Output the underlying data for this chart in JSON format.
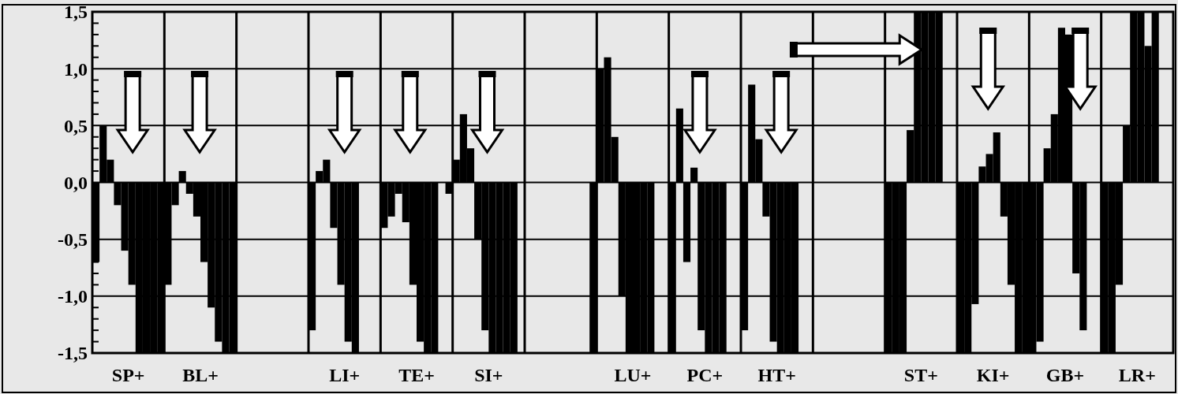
{
  "chart_data": {
    "type": "bar",
    "categories": [
      "SP+",
      "BL+",
      null,
      "LI+",
      "TE+",
      "SI+",
      null,
      "LU+",
      "PC+",
      "HT+",
      null,
      "ST+",
      "KI+",
      "GB+",
      "LR+"
    ],
    "series": [
      {
        "color": "#000000",
        "values": [
          -0.7,
          -0.9,
          null,
          -1.3,
          -0.4,
          0.2,
          null,
          1.0,
          -1.5,
          -1.3,
          null,
          -1.5,
          -1.5,
          -1.5,
          -1.5
        ]
      },
      {
        "color": "#000000",
        "values": [
          0.5,
          -0.2,
          null,
          0.1,
          -0.3,
          0.6,
          null,
          1.1,
          0.65,
          0.86,
          null,
          -1.5,
          -1.5,
          -1.4,
          -1.5
        ]
      },
      {
        "color": "#000000",
        "values": [
          0.2,
          0.1,
          null,
          0.2,
          -0.1,
          0.3,
          null,
          0.4,
          -0.7,
          0.38,
          null,
          -1.5,
          -1.07,
          0.3,
          -0.9
        ]
      },
      {
        "color": "#000000",
        "values": [
          -0.2,
          -0.1,
          null,
          -0.4,
          -0.35,
          -0.5,
          null,
          -1.0,
          0.13,
          -0.3,
          null,
          0.46,
          0.14,
          0.6,
          0.5
        ]
      },
      {
        "color": "#000000",
        "values": [
          -0.6,
          -0.3,
          null,
          -0.9,
          -0.9,
          -1.3,
          null,
          -1.5,
          -1.3,
          -1.4,
          null,
          1.5,
          0.25,
          1.36,
          1.5
        ]
      },
      {
        "color": "#000000",
        "values": [
          -0.9,
          -0.7,
          null,
          -1.4,
          -1.4,
          -1.5,
          null,
          -1.5,
          -1.5,
          -1.5,
          null,
          1.5,
          0.44,
          1.3,
          1.5
        ]
      },
      {
        "color": "#000000",
        "values": [
          -1.5,
          -1.1,
          null,
          -1.5,
          -1.5,
          -1.5,
          null,
          -1.5,
          -1.5,
          -1.5,
          null,
          1.5,
          -0.3,
          -0.8,
          1.2
        ]
      },
      {
        "color": "#000000",
        "values": [
          -1.5,
          -1.4,
          null,
          null,
          -1.5,
          -1.5,
          null,
          -1.5,
          -1.5,
          -1.5,
          null,
          1.5,
          -0.9,
          -1.3,
          1.5
        ]
      },
      {
        "color": "#000000",
        "values": [
          -1.5,
          -1.5,
          null,
          null,
          null,
          -1.5,
          null,
          null,
          null,
          null,
          null,
          null,
          -1.5,
          null,
          null
        ]
      },
      {
        "color": "#000000",
        "values": [
          -1.5,
          -1.5,
          null,
          null,
          -0.1,
          null,
          -1.5,
          null,
          null,
          null,
          null,
          null,
          -1.5,
          null,
          null
        ]
      }
    ],
    "ylim": [
      -1.5,
      1.5
    ],
    "yticks": [
      {
        "value": 1.5,
        "label": "1,5"
      },
      {
        "value": 1.4,
        "label": null
      },
      {
        "value": 1.3,
        "label": null
      },
      {
        "value": 1.2,
        "label": null
      },
      {
        "value": 1.1,
        "label": null
      },
      {
        "value": 1.0,
        "label": "1,0"
      },
      {
        "value": 0.9,
        "label": null
      },
      {
        "value": 0.8,
        "label": null
      },
      {
        "value": 0.7,
        "label": null
      },
      {
        "value": 0.6,
        "label": null
      },
      {
        "value": 0.5,
        "label": "0,5"
      },
      {
        "value": 0.4,
        "label": null
      },
      {
        "value": 0.3,
        "label": null
      },
      {
        "value": 0.2,
        "label": null
      },
      {
        "value": 0.1,
        "label": null
      },
      {
        "value": 0,
        "label": "0,0"
      },
      {
        "value": -0.1,
        "label": null
      },
      {
        "value": -0.2,
        "label": null
      },
      {
        "value": -0.3,
        "label": null
      },
      {
        "value": -0.4,
        "label": null
      },
      {
        "value": -0.5,
        "label": "-0,5"
      },
      {
        "value": -0.6,
        "label": null
      },
      {
        "value": -0.7,
        "label": null
      },
      {
        "value": -0.8,
        "label": null
      },
      {
        "value": -0.9,
        "label": null
      },
      {
        "value": -1.0,
        "label": "-1,0"
      },
      {
        "value": -1.1,
        "label": null
      },
      {
        "value": -1.2,
        "label": null
      },
      {
        "value": -1.3,
        "label": null
      },
      {
        "value": -1.4,
        "label": null
      },
      {
        "value": -1.5,
        "label": "-1,5"
      }
    ],
    "grid": true
  }
}
